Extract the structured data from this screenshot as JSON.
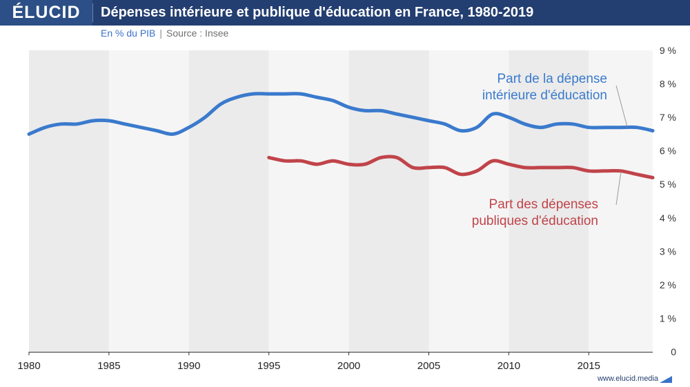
{
  "header": {
    "logo": "ÉLUCID",
    "title": "Dépenses intérieure et publique d'éducation en France, 1980-2019"
  },
  "subtitle": {
    "unit": "En % du PIB",
    "separator": "|",
    "source": "Source : Insee"
  },
  "footer": {
    "url": "www.elucid.media"
  },
  "colors": {
    "series_interieure": "#3a7acd",
    "series_publique": "#c0444a",
    "band_dark": "#ebebeb",
    "band_light": "#f5f5f5",
    "header_bg": "#233e70"
  },
  "chart_data": {
    "type": "line",
    "title": "Dépenses intérieure et publique d'éducation en France, 1980-2019",
    "xlabel": "",
    "ylabel": "En % du PIB",
    "xlim": [
      1980,
      2019
    ],
    "ylim": [
      0,
      9
    ],
    "x_ticks": [
      1980,
      1985,
      1990,
      1995,
      2000,
      2005,
      2010,
      2015
    ],
    "y_ticks": [
      0,
      1,
      2,
      3,
      4,
      5,
      6,
      7,
      8,
      9
    ],
    "y_tick_labels": [
      "0",
      "1 %",
      "2 %",
      "3 %",
      "4 %",
      "5 %",
      "6 %",
      "7 %",
      "8 %",
      "9 %"
    ],
    "grid": false,
    "series": [
      {
        "name": "Part de la dépense intérieure d'éducation",
        "label_lines": [
          "Part de la dépense",
          "intérieure d'éducation"
        ],
        "x": [
          1980,
          1981,
          1982,
          1983,
          1984,
          1985,
          1986,
          1987,
          1988,
          1989,
          1990,
          1991,
          1992,
          1993,
          1994,
          1995,
          1996,
          1997,
          1998,
          1999,
          2000,
          2001,
          2002,
          2003,
          2004,
          2005,
          2006,
          2007,
          2008,
          2009,
          2010,
          2011,
          2012,
          2013,
          2014,
          2015,
          2016,
          2017,
          2018,
          2019
        ],
        "values": [
          6.5,
          6.7,
          6.8,
          6.8,
          6.9,
          6.9,
          6.8,
          6.7,
          6.6,
          6.5,
          6.7,
          7.0,
          7.4,
          7.6,
          7.7,
          7.7,
          7.7,
          7.7,
          7.6,
          7.5,
          7.3,
          7.2,
          7.2,
          7.1,
          7.0,
          6.9,
          6.8,
          6.6,
          6.7,
          7.1,
          7.0,
          6.8,
          6.7,
          6.8,
          6.8,
          6.7,
          6.7,
          6.7,
          6.7,
          6.6
        ]
      },
      {
        "name": "Part des dépenses publiques d'éducation",
        "label_lines": [
          "Part des dépenses",
          "publiques d'éducation"
        ],
        "x": [
          1995,
          1996,
          1997,
          1998,
          1999,
          2000,
          2001,
          2002,
          2003,
          2004,
          2005,
          2006,
          2007,
          2008,
          2009,
          2010,
          2011,
          2012,
          2013,
          2014,
          2015,
          2016,
          2017,
          2018,
          2019
        ],
        "values": [
          5.8,
          5.7,
          5.7,
          5.6,
          5.7,
          5.6,
          5.6,
          5.8,
          5.8,
          5.5,
          5.5,
          5.5,
          5.3,
          5.4,
          5.7,
          5.6,
          5.5,
          5.5,
          5.5,
          5.5,
          5.4,
          5.4,
          5.4,
          5.3,
          5.2
        ]
      }
    ]
  }
}
